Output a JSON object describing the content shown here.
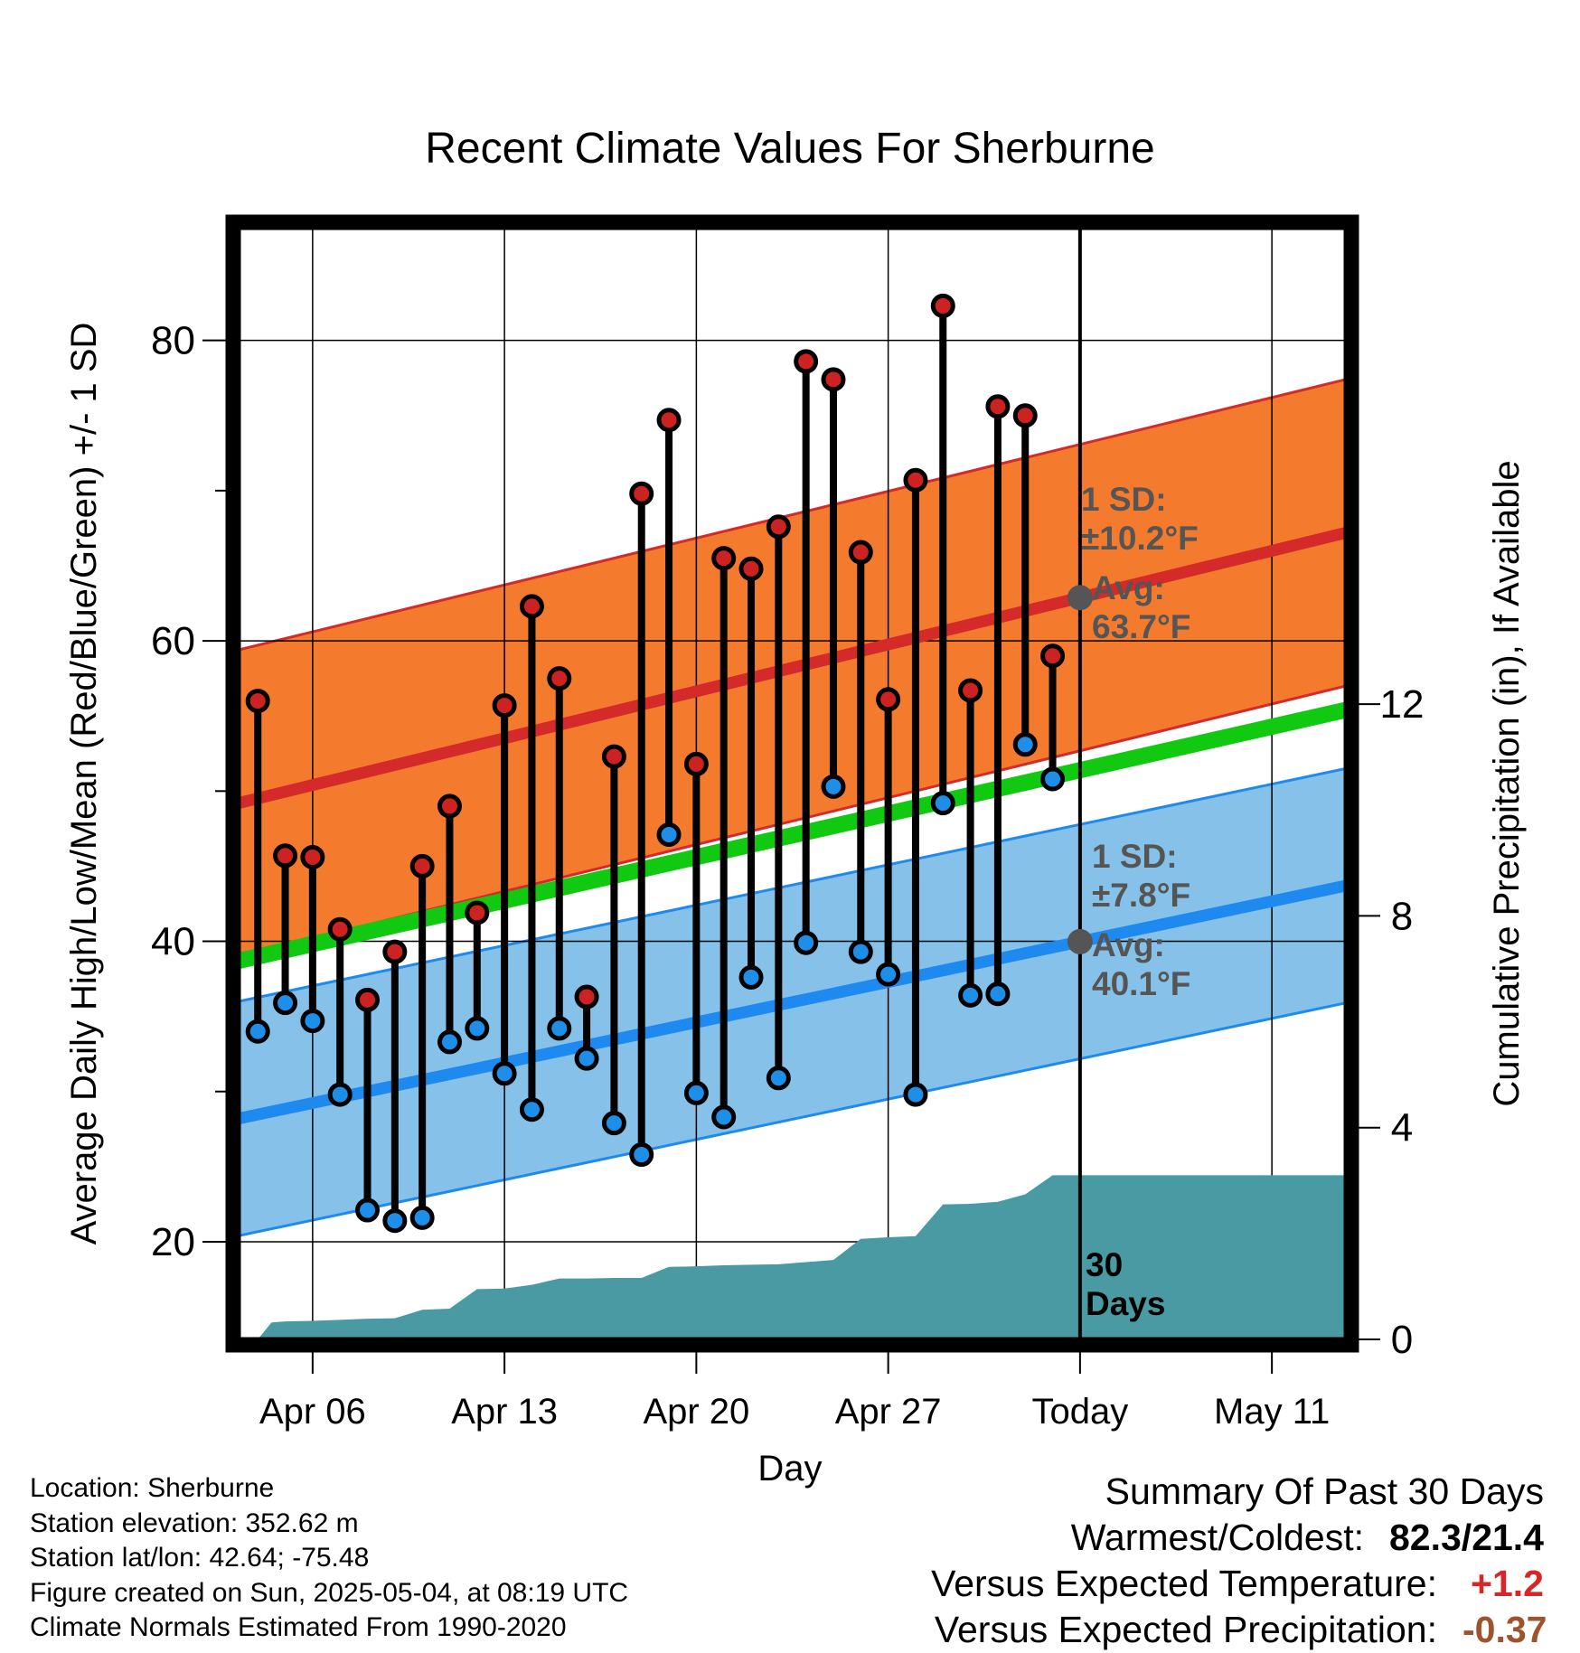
{
  "chart_data": {
    "type": "line",
    "title": "Recent Climate Values For Sherburne",
    "xlabel": "Day",
    "ylabel_left": "Average Daily High/Low/Mean (Red/Blue/Green) +/- 1 SD",
    "ylabel_right": "Cumulative Precipitation (in), If Available",
    "ylim_left": [
      13.5,
      87.5
    ],
    "ylim_right": [
      0,
      21
    ],
    "y_ticks_left": [
      "20",
      "40",
      "60",
      "80"
    ],
    "y_ticks_right": [
      "0",
      "4",
      "8",
      "12"
    ],
    "x_ticks": [
      "Apr 06",
      "Apr 13",
      "Apr 20",
      "Apr 27",
      "Today",
      "May 11"
    ],
    "x_tick_days": [
      6,
      13,
      20,
      27,
      34,
      41
    ],
    "x_range": [
      3.3,
      43.7
    ],
    "today_day": 34,
    "normals": {
      "high_start": 49.2,
      "high_end": 67.2,
      "low_start": 28.2,
      "low_end": 43.7,
      "mean_start": 38.7,
      "mean_end": 55.4,
      "high_sd": 10.2,
      "low_sd": 7.8
    },
    "annotations": {
      "high_sd": [
        "1 SD:",
        "±10.2°F"
      ],
      "high_avg": [
        "Avg:",
        "63.7°F"
      ],
      "low_sd": [
        "1 SD:",
        "±7.8°F"
      ],
      "low_avg": [
        "Avg:",
        "40.1°F"
      ],
      "days": [
        "30",
        "Days"
      ]
    },
    "series": [
      {
        "name": "High",
        "days": [
          4,
          5,
          6,
          7,
          8,
          9,
          10,
          11,
          12,
          13,
          14,
          15,
          16,
          17,
          18,
          19,
          20,
          21,
          22,
          23,
          24,
          25,
          26,
          27,
          28,
          29,
          30,
          31,
          32,
          33
        ],
        "values": [
          56.0,
          45.7,
          45.6,
          40.8,
          36.1,
          39.3,
          45.0,
          49.0,
          41.9,
          55.7,
          62.3,
          57.5,
          36.3,
          52.3,
          69.8,
          74.7,
          51.8,
          65.5,
          64.8,
          67.6,
          78.6,
          77.4,
          65.9,
          56.1,
          70.7,
          82.3,
          56.7,
          75.6,
          75.0,
          59.0
        ]
      },
      {
        "name": "Low",
        "days": [
          4,
          5,
          6,
          7,
          8,
          9,
          10,
          11,
          12,
          13,
          14,
          15,
          16,
          17,
          18,
          19,
          20,
          21,
          22,
          23,
          24,
          25,
          26,
          27,
          28,
          29,
          30,
          31,
          32,
          33
        ],
        "values": [
          34.0,
          35.9,
          34.7,
          29.8,
          22.1,
          21.4,
          21.6,
          33.3,
          34.2,
          31.2,
          28.8,
          34.2,
          32.2,
          27.9,
          25.8,
          47.1,
          29.9,
          28.3,
          37.6,
          30.9,
          39.9,
          50.3,
          39.3,
          37.8,
          29.8,
          49.2,
          36.4,
          36.5,
          53.1,
          50.8
        ]
      },
      {
        "name": "Cumulative Precipitation",
        "days": [
          4,
          4.5,
          5,
          6,
          7,
          8,
          9,
          10,
          11,
          12,
          13,
          14,
          15,
          16,
          17,
          18,
          19,
          20,
          21,
          22,
          23,
          24,
          25,
          26,
          27,
          28,
          29,
          30,
          31,
          32,
          33,
          34,
          43.7
        ],
        "values": [
          0,
          0.32,
          0.34,
          0.35,
          0.37,
          0.39,
          0.4,
          0.56,
          0.58,
          0.95,
          0.96,
          1.03,
          1.15,
          1.15,
          1.16,
          1.16,
          1.37,
          1.38,
          1.4,
          1.41,
          1.42,
          1.46,
          1.5,
          1.9,
          1.93,
          1.95,
          2.55,
          2.56,
          2.6,
          2.74,
          3.1,
          3.1,
          3.1
        ]
      }
    ]
  },
  "footer": {
    "location": "Location: Sherburne",
    "elevation": "Station elevation: 352.62 m",
    "latlon": "Station lat/lon: 42.64; -75.48",
    "created": "Figure created on Sun, 2025-05-04, at 08:19 UTC",
    "normals_note": "Climate Normals Estimated From 1990-2020",
    "summary_title": "Summary Of Past 30 Days",
    "warm_cold_label": "Warmest/Coldest:",
    "warm_cold_value": "82.3/21.4",
    "vs_temp_label": "Versus Expected Temperature:",
    "vs_temp_value": "+1.2",
    "vs_precip_label": "Versus Expected Precipitation:",
    "vs_precip_value": "-0.37"
  },
  "colors": {
    "high_band": "#f47b2e",
    "high_line": "#d42a2a",
    "low_band": "#85c1e8",
    "low_line": "#1e8af0",
    "mean_line": "#12c912",
    "precip": "#4a9aa3",
    "high_dot": "#cc2222",
    "low_dot": "#1e8fe8",
    "annot": "#555555",
    "vs_temp": "#d62728",
    "vs_precip": "#a0522d"
  }
}
